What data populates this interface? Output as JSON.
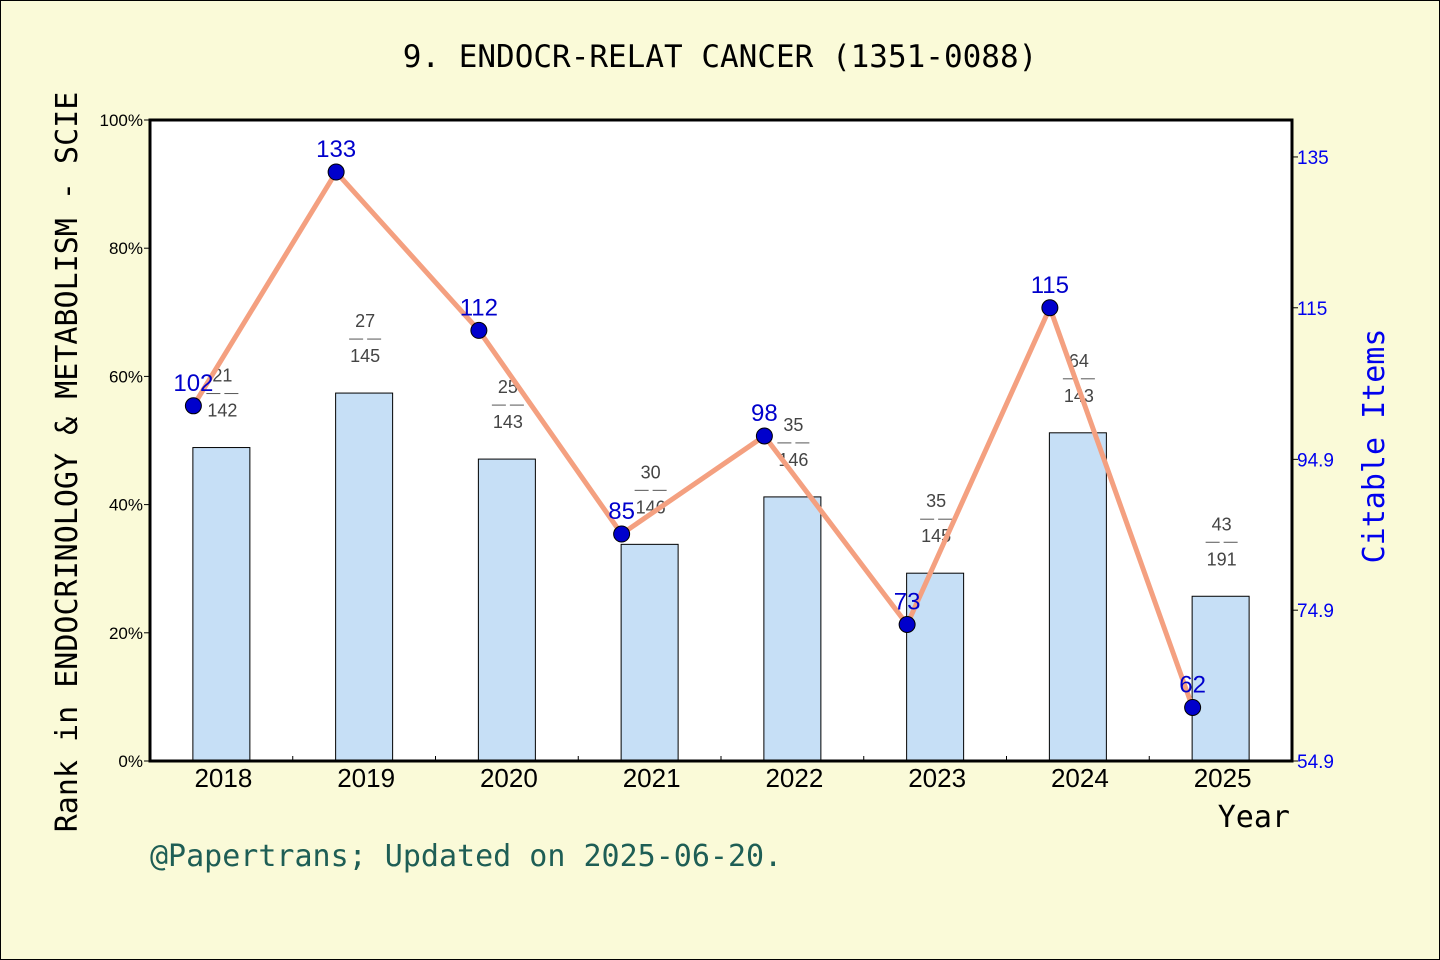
{
  "chart_data": {
    "type": "bar",
    "title": "9. ENDOCR-RELAT CANCER (1351-0088)",
    "xlabel": "Year",
    "ylabel": "Rank in ENDOCRINOLOGY & METABOLISM - SCIE",
    "ylabel_right": "Citable Items",
    "footer": "@Papertrans; Updated on 2025-06-20.",
    "categories": [
      "2018",
      "2019",
      "2020",
      "2021",
      "2022",
      "2023",
      "2024",
      "2025"
    ],
    "ylim": [
      0,
      100
    ],
    "y_ticks": [
      "0%",
      "20%",
      "40%",
      "60%",
      "80%",
      "100%"
    ],
    "y2lim": [
      54.9,
      139.9
    ],
    "y2_ticks": [
      {
        "value": 135,
        "label": "135"
      },
      {
        "value": 115,
        "label": "115"
      },
      {
        "value": 94.9,
        "label": "94.9"
      },
      {
        "value": 74.9,
        "label": "74.9"
      },
      {
        "value": 54.9,
        "label": "54.9"
      }
    ],
    "series": [
      {
        "type": "bar",
        "values": [
          48.9,
          57.4,
          47.1,
          33.8,
          41.2,
          29.3,
          51.2,
          25.7
        ],
        "rank": [
          "21",
          "27",
          "25",
          "30",
          "35",
          "35",
          "64",
          "43"
        ],
        "total": [
          "142",
          "145",
          "143",
          "146",
          "146",
          "145",
          "143",
          "191"
        ],
        "color": "#c6dff6"
      },
      {
        "type": "line",
        "axis": "right",
        "values": [
          102,
          133,
          112,
          85,
          98,
          73,
          115,
          62
        ],
        "labels": [
          "102",
          "133",
          "112",
          "85",
          "98",
          "73",
          "115",
          "62"
        ],
        "line_color": "#f4a080",
        "marker_color": "#0000cc"
      }
    ],
    "grid": false,
    "legend": "none"
  }
}
